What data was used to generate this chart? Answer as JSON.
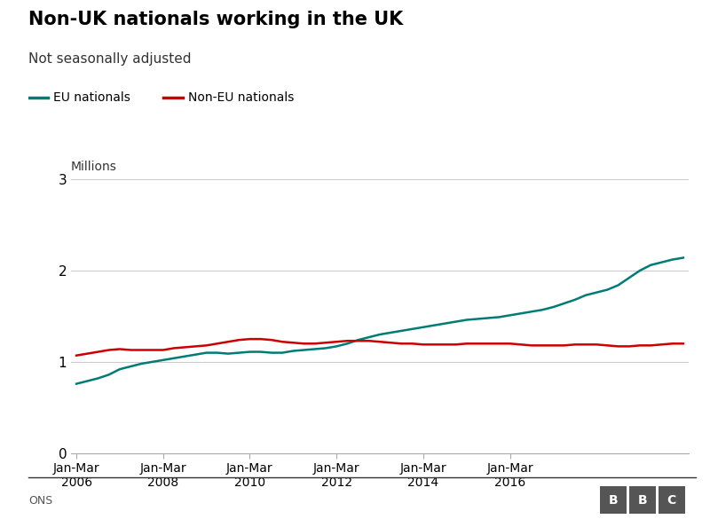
{
  "title": "Non-UK nationals working in the UK",
  "subtitle": "Not seasonally adjusted",
  "ylabel": "Millions",
  "source": "ONS",
  "eu_color": "#007C77",
  "noneu_color": "#CC0000",
  "background_color": "#ffffff",
  "ylim": [
    0,
    3
  ],
  "yticks": [
    0,
    1,
    2,
    3
  ],
  "xtick_labels": [
    "Jan-Mar\n2006",
    "Jan-Mar\n2008",
    "Jan-Mar\n2010",
    "Jan-Mar\n2012",
    "Jan-Mar\n2014",
    "Jan-Mar\n2016"
  ],
  "eu_nationals": [
    0.76,
    0.79,
    0.82,
    0.86,
    0.92,
    0.95,
    0.98,
    1.0,
    1.02,
    1.04,
    1.06,
    1.08,
    1.1,
    1.1,
    1.09,
    1.1,
    1.11,
    1.11,
    1.1,
    1.1,
    1.12,
    1.13,
    1.14,
    1.15,
    1.17,
    1.2,
    1.24,
    1.27,
    1.3,
    1.32,
    1.34,
    1.36,
    1.38,
    1.4,
    1.42,
    1.44,
    1.46,
    1.47,
    1.48,
    1.49,
    1.51,
    1.53,
    1.55,
    1.57,
    1.6,
    1.64,
    1.68,
    1.73,
    1.76,
    1.79,
    1.84,
    1.92,
    2.0,
    2.06,
    2.09,
    2.12,
    2.14
  ],
  "non_eu_nationals": [
    1.07,
    1.09,
    1.11,
    1.13,
    1.14,
    1.13,
    1.13,
    1.13,
    1.13,
    1.15,
    1.16,
    1.17,
    1.18,
    1.2,
    1.22,
    1.24,
    1.25,
    1.25,
    1.24,
    1.22,
    1.21,
    1.2,
    1.2,
    1.21,
    1.22,
    1.23,
    1.23,
    1.23,
    1.22,
    1.21,
    1.2,
    1.2,
    1.19,
    1.19,
    1.19,
    1.19,
    1.2,
    1.2,
    1.2,
    1.2,
    1.2,
    1.19,
    1.18,
    1.18,
    1.18,
    1.18,
    1.19,
    1.19,
    1.19,
    1.18,
    1.17,
    1.17,
    1.18,
    1.18,
    1.19,
    1.2,
    1.2
  ]
}
